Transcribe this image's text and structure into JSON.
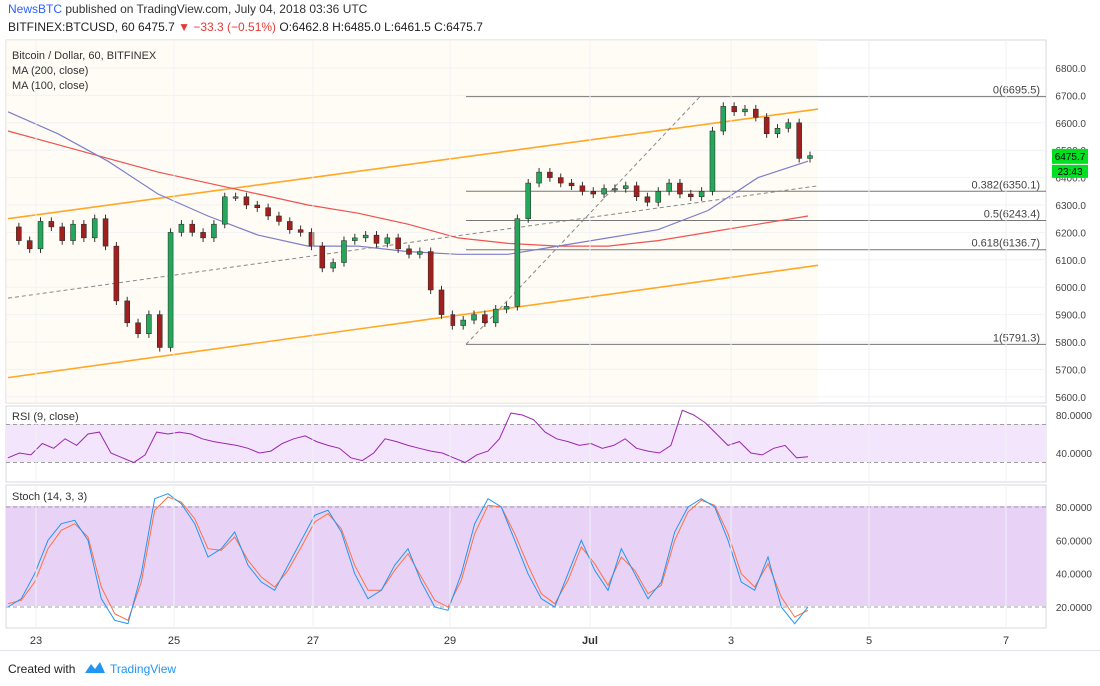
{
  "header": {
    "publisher": "NewsBTC",
    "published_text": "published on",
    "platform": "TradingView.com",
    "date": ", July 04, 2018 03:36 UTC"
  },
  "symbol_line": {
    "symbol": "BITFINEX:BTCUSD, 60",
    "last": "6475.7",
    "change": "▼ −33.3 (−0.51%)",
    "ohlc": "O:6462.8 H:6485.0 L:6461.5 C:6475.7"
  },
  "legend": {
    "title": "Bitcoin / Dollar, 60, BITFINEX",
    "ma200": "MA (200, close)",
    "ma100": "MA (100, close)",
    "rsi": "RSI (9, close)",
    "stoch": "Stoch (14, 3, 3)"
  },
  "price_badge": {
    "value": "6475.7",
    "timer": "23:43"
  },
  "footer": {
    "created_with": "Created with",
    "brand": "TradingView"
  },
  "colors": {
    "up": "#26a65b",
    "down": "#a02020",
    "channel": "#ffa726",
    "ma200": "#ef5350",
    "ma100": "#7e7ec8",
    "rsi": "#9c27b0",
    "stoch_k": "#2196f3",
    "stoch_d": "#ff7043",
    "badge": "#00e020"
  },
  "chart_data": {
    "type": "candlestick",
    "price_axis": {
      "ticks": [
        6800,
        6700,
        6600,
        6500,
        6400,
        6300,
        6200,
        6100,
        6000,
        5900,
        5800,
        5700,
        5600
      ],
      "ylim": [
        5600,
        6800
      ]
    },
    "x_axis": {
      "tick_labels": [
        "23",
        "25",
        "27",
        "29",
        "Jul",
        "3",
        "5",
        "7"
      ]
    },
    "fibonacci": [
      {
        "label": "0(6695.5)",
        "value": 6695.5
      },
      {
        "label": "0.382(6350.1)",
        "value": 6350.1
      },
      {
        "label": "0.5(6243.4)",
        "value": 6243.4
      },
      {
        "label": "0.618(6136.7)",
        "value": 6136.7
      },
      {
        "label": "1(5791.3)",
        "value": 5791.3
      }
    ],
    "channel": {
      "upper": [
        {
          "t": 0,
          "v": 6250
        },
        {
          "t": 1,
          "v": 6650
        }
      ],
      "lower": [
        {
          "t": 0,
          "v": 5670
        },
        {
          "t": 1,
          "v": 6080
        }
      ]
    },
    "close_path": [
      6220,
      6170,
      6140,
      6240,
      6220,
      6170,
      6230,
      6180,
      6250,
      6150,
      5950,
      5870,
      5830,
      5900,
      5780,
      6200,
      6230,
      6200,
      6180,
      6230,
      6330,
      6330,
      6300,
      6290,
      6260,
      6240,
      6210,
      6200,
      6150,
      6070,
      6090,
      6170,
      6180,
      6190,
      6160,
      6180,
      6140,
      6120,
      6130,
      5990,
      5900,
      5860,
      5880,
      5900,
      5870,
      5920,
      5930,
      6250,
      6380,
      6420,
      6400,
      6380,
      6370,
      6350,
      6340,
      6360,
      6360,
      6370,
      6330,
      6310,
      6350,
      6380,
      6340,
      6330,
      6350,
      6570,
      6660,
      6640,
      6650,
      6620,
      6560,
      6580,
      6600,
      6470,
      6480
    ],
    "ma200": [
      6570,
      6520,
      6470,
      6420,
      6380,
      6340,
      6300,
      6270,
      6230,
      6180,
      6160,
      6150,
      6150,
      6170,
      6200,
      6230,
      6260
    ],
    "ma100": [
      6640,
      6560,
      6460,
      6340,
      6260,
      6190,
      6150,
      6150,
      6130,
      6120,
      6120,
      6150,
      6180,
      6210,
      6280,
      6400,
      6460
    ],
    "rsi": {
      "ticks": [
        "80.0000",
        "40.0000"
      ],
      "bands": [
        70,
        30
      ],
      "values": [
        35,
        40,
        38,
        50,
        45,
        55,
        48,
        60,
        62,
        40,
        35,
        30,
        38,
        62,
        60,
        62,
        60,
        55,
        52,
        50,
        48,
        45,
        40,
        42,
        50,
        55,
        58,
        52,
        48,
        45,
        35,
        32,
        40,
        55,
        52,
        48,
        45,
        42,
        40,
        35,
        30,
        38,
        42,
        55,
        82,
        80,
        75,
        62,
        55,
        52,
        48,
        50,
        45,
        48,
        55,
        45,
        42,
        40,
        48,
        85,
        80,
        72,
        60,
        48,
        52,
        40,
        38,
        45,
        48,
        35,
        36
      ]
    },
    "stoch": {
      "ticks": [
        "80.0000",
        "60.0000",
        "40.0000",
        "20.0000"
      ],
      "bands": [
        80,
        20
      ],
      "k": [
        20,
        25,
        40,
        60,
        70,
        72,
        60,
        25,
        12,
        10,
        40,
        85,
        88,
        82,
        70,
        50,
        55,
        65,
        45,
        35,
        30,
        45,
        60,
        75,
        78,
        65,
        40,
        25,
        30,
        45,
        55,
        35,
        20,
        18,
        40,
        70,
        85,
        80,
        60,
        40,
        25,
        20,
        40,
        60,
        42,
        30,
        55,
        40,
        25,
        35,
        65,
        80,
        85,
        80,
        60,
        35,
        30,
        50,
        20,
        10,
        20
      ],
      "d": [
        22,
        24,
        35,
        55,
        66,
        70,
        62,
        32,
        16,
        12,
        35,
        78,
        86,
        83,
        73,
        55,
        54,
        62,
        48,
        38,
        32,
        42,
        56,
        71,
        76,
        67,
        45,
        30,
        30,
        42,
        52,
        38,
        24,
        20,
        36,
        64,
        81,
        80,
        64,
        45,
        28,
        22,
        36,
        56,
        46,
        33,
        50,
        42,
        28,
        33,
        60,
        77,
        84,
        81,
        64,
        40,
        32,
        46,
        26,
        14,
        18
      ]
    }
  }
}
